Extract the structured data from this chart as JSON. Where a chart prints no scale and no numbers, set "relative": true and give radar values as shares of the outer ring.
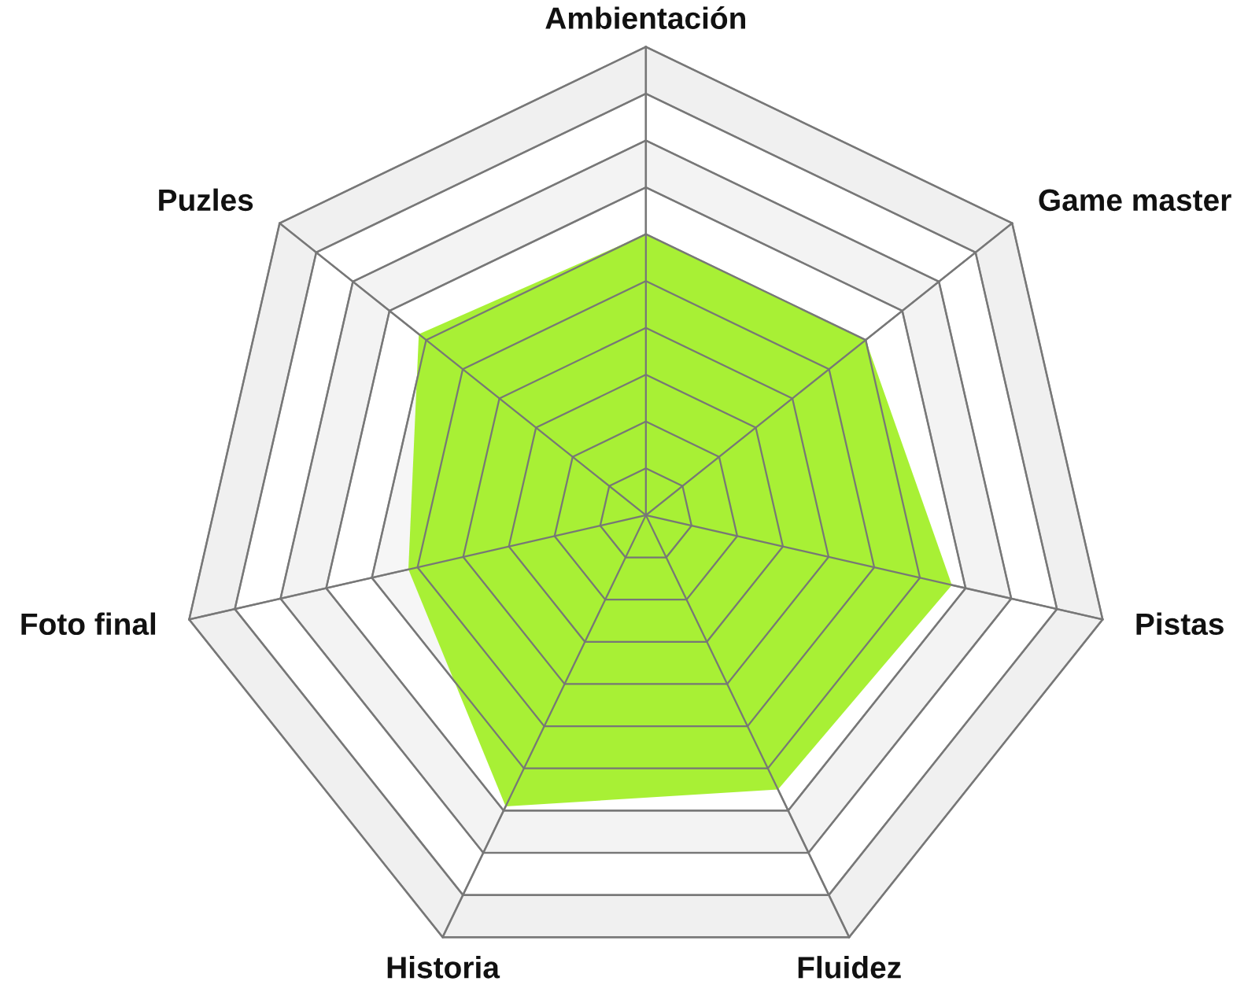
{
  "chart_data": {
    "type": "radar",
    "relative": true,
    "grid": true,
    "categories": [
      "Ambientación",
      "Game master",
      "Pistas",
      "Fluidez",
      "Historia",
      "Foto final",
      "Puzles"
    ],
    "series": [
      {
        "color": "#a3ef2a",
        "values": [
          0.6,
          0.6,
          0.67,
          0.65,
          0.69,
          0.52,
          0.62
        ]
      }
    ]
  }
}
